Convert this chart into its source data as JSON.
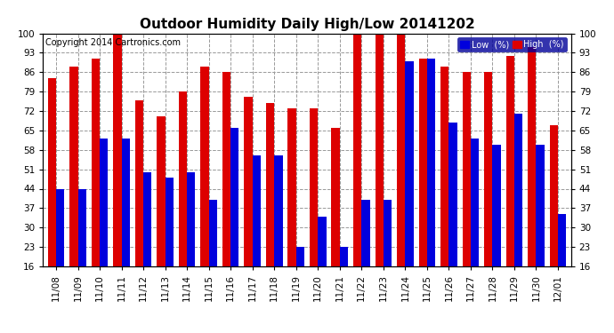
{
  "title": "Outdoor Humidity Daily High/Low 20141202",
  "copyright": "Copyright 2014 Cartronics.com",
  "legend_low": "Low  (%)",
  "legend_high": "High  (%)",
  "dates": [
    "11/08",
    "11/09",
    "11/10",
    "11/11",
    "11/12",
    "11/13",
    "11/14",
    "11/15",
    "11/16",
    "11/17",
    "11/18",
    "11/19",
    "11/20",
    "11/21",
    "11/22",
    "11/23",
    "11/24",
    "11/25",
    "11/26",
    "11/27",
    "11/28",
    "11/29",
    "11/30",
    "12/01"
  ],
  "high": [
    84,
    88,
    91,
    100,
    76,
    70,
    79,
    88,
    86,
    77,
    75,
    73,
    73,
    66,
    100,
    100,
    100,
    91,
    88,
    86,
    86,
    92,
    95,
    67
  ],
  "low": [
    44,
    44,
    62,
    62,
    50,
    48,
    50,
    40,
    66,
    56,
    56,
    23,
    34,
    23,
    40,
    40,
    90,
    91,
    68,
    62,
    60,
    71,
    60,
    35
  ],
  "ylim_min": 16,
  "ylim_max": 100,
  "yticks": [
    16,
    23,
    30,
    37,
    44,
    51,
    58,
    65,
    72,
    79,
    86,
    93,
    100
  ],
  "bar_width": 0.38,
  "low_color": "#0000dd",
  "high_color": "#dd0000",
  "bg_color": "#ffffff",
  "grid_color": "#999999",
  "title_fontsize": 11,
  "tick_fontsize": 7.5,
  "copyright_fontsize": 7
}
